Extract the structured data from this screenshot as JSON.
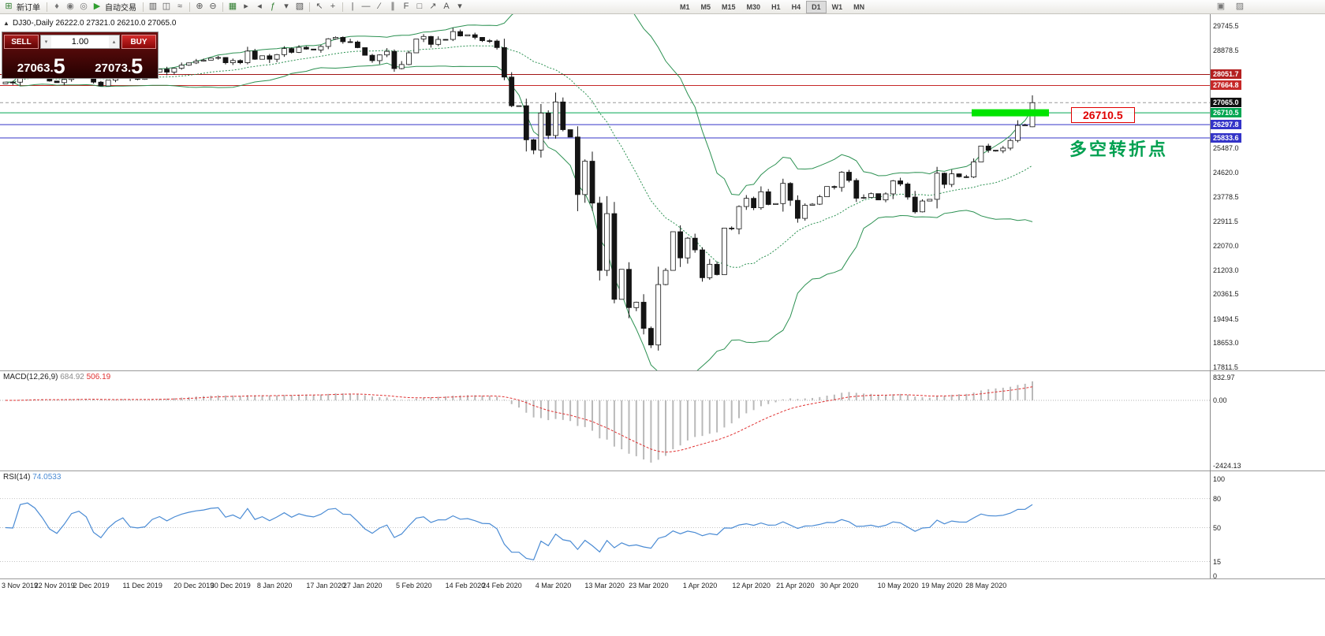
{
  "colors": {
    "band": "#2c9152",
    "bull": "#ffffff",
    "bear": "#141414",
    "candle_border": "#141414",
    "macd_hist": "#b9b9b9",
    "macd_signal": "#e03030",
    "rsi_line": "#4a8bd4",
    "green_rect": "#00e400",
    "annotation_green": "#00a050",
    "label_red": "#e00000"
  },
  "toolbar": {
    "icons_left": [
      {
        "n": "new-order-icon",
        "g": "⊞",
        "c": "#2f7d2f",
        "label": "新订单"
      },
      {
        "sep": true
      },
      {
        "n": "market-watch-icon",
        "g": "♦",
        "c": "#777777"
      },
      {
        "n": "accounts-icon",
        "g": "◉",
        "c": "#777777"
      },
      {
        "n": "alerts-icon",
        "g": "◎",
        "c": "#777777"
      },
      {
        "n": "autotrading-icon",
        "g": "▶",
        "c": "#2f9e2f",
        "label": "自动交易"
      },
      {
        "sep": true
      },
      {
        "n": "bar-chart-icon",
        "g": "▥",
        "c": "#555555"
      },
      {
        "n": "candlestick-icon",
        "g": "◫",
        "c": "#555555"
      },
      {
        "n": "line-chart-icon",
        "g": "≈",
        "c": "#555555"
      },
      {
        "sep": true
      },
      {
        "n": "zoom-in-icon",
        "g": "⊕",
        "c": "#555555"
      },
      {
        "n": "zoom-out-icon",
        "g": "⊖",
        "c": "#555555"
      },
      {
        "sep": true
      },
      {
        "n": "grid-icon",
        "g": "▦",
        "c": "#2f7d2f"
      },
      {
        "n": "auto-scroll-icon",
        "g": "▸",
        "c": "#555555"
      },
      {
        "n": "chart-shift-icon",
        "g": "◂",
        "c": "#555555"
      },
      {
        "n": "indicators-icon",
        "g": "ƒ",
        "c": "#2f7d2f"
      },
      {
        "n": "indicator-dropdown-icon",
        "g": "▾",
        "c": "#555555"
      },
      {
        "n": "templates-icon",
        "g": "▧",
        "c": "#555555"
      },
      {
        "sep": true
      },
      {
        "n": "cursor-icon",
        "g": "↖",
        "c": "#555555"
      },
      {
        "n": "crosshair-icon",
        "g": "+",
        "c": "#555555"
      },
      {
        "sep": true
      },
      {
        "n": "vertical-line-icon",
        "g": "|",
        "c": "#555555"
      },
      {
        "n": "horizontal-line-icon",
        "g": "—",
        "c": "#555555"
      },
      {
        "n": "trendline-icon",
        "g": "∕",
        "c": "#555555"
      },
      {
        "n": "channel-icon",
        "g": "∥",
        "c": "#555555"
      },
      {
        "n": "fibonacci-icon",
        "g": "F",
        "c": "#555555"
      },
      {
        "n": "shapes-icon",
        "g": "□",
        "c": "#555555"
      },
      {
        "n": "arrows-icon",
        "g": "↗",
        "c": "#555555"
      },
      {
        "n": "text-icon",
        "g": "A",
        "c": "#555555"
      },
      {
        "n": "more-tools-icon",
        "g": "▾",
        "c": "#555555"
      }
    ],
    "icons_right": [
      {
        "n": "window-layout-icon",
        "g": "▣",
        "c": "#777777"
      },
      {
        "n": "panel-toggle-icon",
        "g": "▨",
        "c": "#777777"
      }
    ],
    "timeframes": [
      "M1",
      "M5",
      "M15",
      "M30",
      "H1",
      "H4",
      "D1",
      "W1",
      "MN"
    ],
    "active_timeframe": "D1"
  },
  "symbol_header": "DJ30-,Daily 26222.0 27321.0 26210.0 27065.0",
  "one_click": {
    "collapse_glyph": "▲",
    "sell_label": "SELL",
    "buy_label": "BUY",
    "lot_value": "1.00",
    "spin_down_glyph": "▾",
    "spin_up_glyph": "▴",
    "sell_price_small": "27063.",
    "sell_price_big": "5",
    "buy_price_small": "27073.",
    "buy_price_big": "5"
  },
  "annotations": {
    "turning_point_text": "多空转折点",
    "level_label": "26710.5",
    "level_price": 26710.5
  },
  "macd_header": {
    "name": "MACD(12,26,9)",
    "value": "684.92",
    "signal": "506.19"
  },
  "rsi_header": {
    "name": "RSI(14)",
    "value": "74.0533"
  },
  "axis": {
    "price_labels": [
      29745.5,
      28878.5,
      25487.0,
      24620.0,
      23778.5,
      22911.5,
      22070.0,
      21203.0,
      20361.5,
      19494.5,
      18653.0,
      17811.5
    ],
    "badges": [
      {
        "value": "28051.7",
        "price": 28051.7,
        "bg": "#b42020",
        "fg": "#ffffff"
      },
      {
        "value": "27664.8",
        "price": 27664.8,
        "bg": "#c62828",
        "fg": "#ffffff"
      },
      {
        "value": "27065.0",
        "price": 27065.0,
        "bg": "#101010",
        "fg": "#ffffff"
      },
      {
        "value": "26710.5",
        "price": 26710.5,
        "bg": "#00a651",
        "fg": "#ffffff"
      },
      {
        "value": "26297.8",
        "price": 26297.8,
        "bg": "#3434c8",
        "fg": "#ffffff"
      },
      {
        "value": "25833.6",
        "price": 25833.6,
        "bg": "#3434c8",
        "fg": "#ffffff"
      }
    ],
    "macd_labels": [
      "832.97",
      "0.00",
      "-2424.13"
    ],
    "rsi_labels": [
      100,
      80,
      50,
      15,
      0
    ],
    "rsi_levels": [
      80,
      50,
      15
    ]
  },
  "chart_data": {
    "type": "candlestick",
    "symbol": "DJ30-",
    "timeframe": "Daily",
    "last_candle": [
      26222.0,
      27321.0,
      26210.0,
      27065.0
    ],
    "y_axis_range": [
      17700,
      30160
    ],
    "price_lines": [
      {
        "price": 28051.7,
        "color": "#a01515",
        "style": "solid"
      },
      {
        "price": 27664.8,
        "color": "#c62828",
        "style": "solid"
      },
      {
        "price": 26710.5,
        "color": "#00a651",
        "style": "solid"
      },
      {
        "price": 26297.8,
        "color": "#3434c8",
        "style": "solid"
      },
      {
        "price": 25833.6,
        "color": "#3434c8",
        "style": "solid"
      },
      {
        "price": 27065.0,
        "color": "#999999",
        "style": "dashed"
      }
    ],
    "closes": [
      27784,
      27782,
      28005,
      28036,
      28004,
      27934,
      27821,
      27766,
      27876,
      28066,
      28121,
      28051,
      27783,
      27650,
      27850,
      28015,
      28135,
      27910,
      27882,
      27912,
      28132,
      28235,
      28132,
      28267,
      28376,
      28455,
      28515,
      28551,
      28621,
      28645,
      28462,
      28538,
      28462,
      28869,
      28583,
      28704,
      28584,
      28745,
      28957,
      28824,
      29001,
      28939,
      28907,
      29030,
      29297,
      29348,
      29196,
      29186,
      28989,
      28722,
      28535,
      28734,
      28859,
      28256,
      28399,
      28808,
      29290,
      29380,
      29103,
      29277,
      29276,
      29551,
      29398,
      29440,
      29348,
      29232,
      29220,
      28992,
      27960,
      26957,
      26958,
      25766,
      25409,
      26703,
      25917,
      27090,
      26121,
      25864,
      23851,
      25018,
      23553,
      21200,
      23185,
      20188,
      21237,
      19898,
      20087,
      19173,
      18591,
      20704,
      21200,
      22552,
      21636,
      22327,
      21917,
      20943,
      21413,
      21052,
      22679,
      22653,
      23433,
      23719,
      23390,
      23949,
      23504,
      23537,
      24242,
      23650,
      23018,
      23475,
      23515,
      23775,
      24133,
      24101,
      24633,
      24345,
      23723,
      23749,
      23883,
      23664,
      23875,
      24331,
      24221,
      23764,
      23247,
      23625,
      23685,
      24597,
      24206,
      24575,
      24474,
      24465,
      24995,
      25548,
      25400,
      25383,
      25475,
      25743,
      26270,
      26282,
      27065
    ],
    "date_labels": [
      {
        "t": "3 Nov 2019",
        "i": 0
      },
      {
        "t": "22 Nov 2019",
        "i": 7
      },
      {
        "t": "2 Dec 2019",
        "i": 12
      },
      {
        "t": "11 Dec 2019",
        "i": 19
      },
      {
        "t": "20 Dec 2019",
        "i": 26
      },
      {
        "t": "30 Dec 2019",
        "i": 31
      },
      {
        "t": "8 Jan 2020",
        "i": 37
      },
      {
        "t": "17 Jan 2020",
        "i": 44
      },
      {
        "t": "27 Jan 2020",
        "i": 49
      },
      {
        "t": "5 Feb 2020",
        "i": 56
      },
      {
        "t": "14 Feb 2020",
        "i": 63
      },
      {
        "t": "24 Feb 2020",
        "i": 68
      },
      {
        "t": "4 Mar 2020",
        "i": 75
      },
      {
        "t": "13 Mar 2020",
        "i": 82
      },
      {
        "t": "23 Mar 2020",
        "i": 88
      },
      {
        "t": "1 Apr 2020",
        "i": 95
      },
      {
        "t": "12 Apr 2020",
        "i": 102
      },
      {
        "t": "21 Apr 2020",
        "i": 108
      },
      {
        "t": "30 Apr 2020",
        "i": 114
      },
      {
        "t": "10 May 2020",
        "i": 122
      },
      {
        "t": "19 May 2020",
        "i": 128
      },
      {
        "t": "28 May 2020",
        "i": 134
      }
    ],
    "indicators": {
      "bollinger_period": 20,
      "bollinger_dev": 2,
      "macd": [
        12,
        26,
        9
      ],
      "rsi_period": 14
    }
  }
}
